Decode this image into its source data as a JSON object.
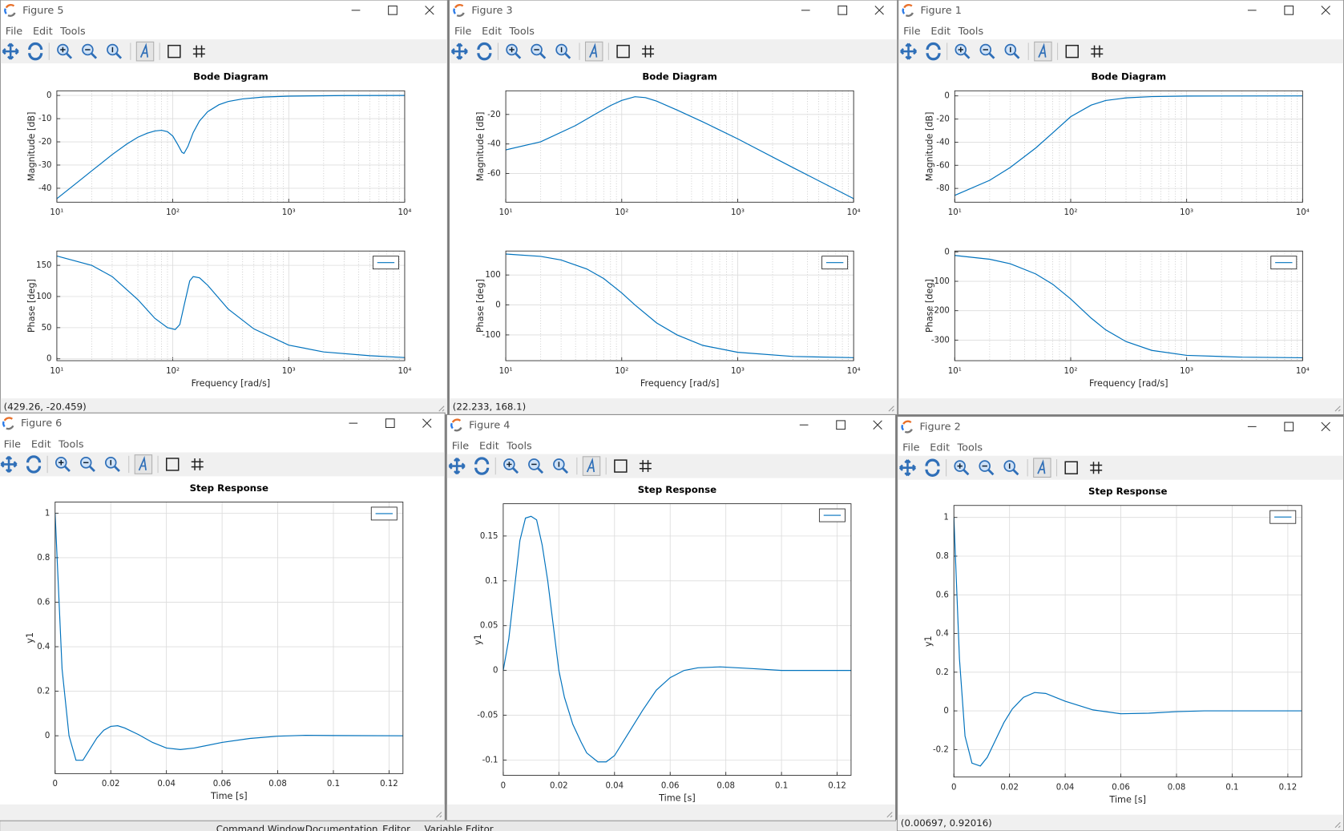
{
  "windows": [
    {
      "title": "Figure 5",
      "menu": [
        "File",
        "Edit",
        "Tools"
      ],
      "status": "(429.26, -20.459)",
      "charts": [
        {
          "type": "line",
          "title": "Bode Diagram",
          "ylabel": "Magnitude [dB]",
          "xscale": "log",
          "xlim": [
            10,
            10000
          ],
          "ylim": [
            -46,
            2
          ],
          "xticks": [
            {
              "value": 10,
              "label": "10¹"
            },
            {
              "value": 100,
              "label": "10²"
            },
            {
              "value": 1000,
              "label": "10³"
            },
            {
              "value": 10000,
              "label": "10⁴"
            }
          ],
          "yticks": [
            -40,
            -30,
            -20,
            -10,
            0
          ],
          "grid": true,
          "minor_grid": true,
          "series": [
            {
              "color": "#0072bd",
              "x": [
                10,
                15,
                20,
                30,
                40,
                50,
                60,
                70,
                80,
                90,
                100,
                110,
                120,
                125,
                135,
                150,
                170,
                200,
                250,
                300,
                400,
                600,
                1000,
                3000,
                10000
              ],
              "y": [
                -44.5,
                -37.5,
                -32.5,
                -25.5,
                -21,
                -18,
                -16.3,
                -15.3,
                -15,
                -15.6,
                -17.5,
                -21,
                -24.5,
                -25,
                -22,
                -16,
                -11,
                -7,
                -4,
                -2.6,
                -1.5,
                -0.7,
                -0.3,
                -0.05,
                0
              ]
            }
          ]
        },
        {
          "type": "line",
          "xlabel": "Frequency [rad/s]",
          "ylabel": "Phase [deg]",
          "xscale": "log",
          "xlim": [
            10,
            10000
          ],
          "ylim": [
            -3,
            173
          ],
          "xticks": [
            {
              "value": 10,
              "label": "10¹"
            },
            {
              "value": 100,
              "label": "10²"
            },
            {
              "value": 1000,
              "label": "10³"
            },
            {
              "value": 10000,
              "label": "10⁴"
            }
          ],
          "yticks": [
            0,
            50,
            100,
            150
          ],
          "grid": true,
          "minor_grid": true,
          "legend": "northeast",
          "series": [
            {
              "color": "#0072bd",
              "x": [
                10,
                20,
                30,
                50,
                70,
                90,
                105,
                115,
                125,
                140,
                150,
                170,
                200,
                300,
                500,
                1000,
                2000,
                5000,
                10000
              ],
              "y": [
                165,
                150,
                132,
                95,
                65,
                50,
                47,
                55,
                85,
                125,
                132,
                130,
                118,
                80,
                48,
                22,
                11,
                5,
                2
              ]
            }
          ]
        }
      ]
    },
    {
      "title": "Figure 3",
      "menu": [
        "File",
        "Edit",
        "Tools"
      ],
      "status": "(22.233, 168.1)",
      "charts": [
        {
          "type": "line",
          "title": "Bode Diagram",
          "ylabel": "Magnitude [dB]",
          "xscale": "log",
          "xlim": [
            10,
            10000
          ],
          "ylim": [
            -79.4,
            -4
          ],
          "xticks": [
            {
              "value": 10,
              "label": "10¹"
            },
            {
              "value": 100,
              "label": "10²"
            },
            {
              "value": 1000,
              "label": "10³"
            },
            {
              "value": 10000,
              "label": "10⁴"
            }
          ],
          "yticks": [
            -60,
            -40,
            -20
          ],
          "grid": true,
          "minor_grid": true,
          "series": [
            {
              "color": "#0072bd",
              "x": [
                10,
                20,
                40,
                60,
                80,
                100,
                130,
                160,
                200,
                300,
                500,
                1000,
                3000,
                10000
              ],
              "y": [
                -44,
                -38.5,
                -27.5,
                -19.5,
                -14,
                -10.5,
                -8,
                -8.6,
                -11,
                -17,
                -25,
                -36.5,
                -56,
                -77
              ]
            }
          ]
        },
        {
          "type": "line",
          "xlabel": "Frequency [rad/s]",
          "ylabel": "Phase [deg]",
          "xscale": "log",
          "xlim": [
            10,
            10000
          ],
          "ylim": [
            -186,
            180
          ],
          "xticks": [
            {
              "value": 10,
              "label": "10¹"
            },
            {
              "value": 100,
              "label": "10²"
            },
            {
              "value": 1000,
              "label": "10³"
            },
            {
              "value": 10000,
              "label": "10⁴"
            }
          ],
          "yticks": [
            -100,
            0,
            100
          ],
          "grid": true,
          "minor_grid": true,
          "legend": "northeast",
          "series": [
            {
              "color": "#0072bd",
              "x": [
                10,
                20,
                30,
                50,
                70,
                100,
                130,
                200,
                300,
                500,
                1000,
                3000,
                10000
              ],
              "y": [
                170,
                162,
                150,
                120,
                88,
                40,
                0,
                -60,
                -100,
                -135,
                -158,
                -172,
                -176
              ]
            }
          ]
        }
      ]
    },
    {
      "title": "Figure 1",
      "menu": [
        "File",
        "Edit",
        "Tools"
      ],
      "charts": [
        {
          "type": "line",
          "title": "Bode Diagram",
          "ylabel": "Magnitude [dB]",
          "xscale": "log",
          "xlim": [
            10,
            10000
          ],
          "ylim": [
            -91.9,
            4.4
          ],
          "xticks": [
            {
              "value": 10,
              "label": "10¹"
            },
            {
              "value": 100,
              "label": "10²"
            },
            {
              "value": 1000,
              "label": "10³"
            },
            {
              "value": 10000,
              "label": "10⁴"
            }
          ],
          "yticks": [
            -80,
            -60,
            -40,
            -20,
            0
          ],
          "grid": true,
          "minor_grid": true,
          "series": [
            {
              "color": "#0072bd",
              "x": [
                10,
                20,
                30,
                50,
                70,
                100,
                150,
                200,
                300,
                500,
                1000,
                10000
              ],
              "y": [
                -86,
                -73,
                -62,
                -45,
                -32,
                -18,
                -8,
                -4,
                -1.7,
                -0.6,
                -0.15,
                0
              ]
            }
          ]
        },
        {
          "type": "line",
          "xlabel": "Frequency [rad/s]",
          "ylabel": "Phase [deg]",
          "xscale": "log",
          "xlim": [
            10,
            10000
          ],
          "ylim": [
            -370,
            3
          ],
          "xticks": [
            {
              "value": 10,
              "label": "10¹"
            },
            {
              "value": 100,
              "label": "10²"
            },
            {
              "value": 1000,
              "label": "10³"
            },
            {
              "value": 10000,
              "label": "10⁴"
            }
          ],
          "yticks": [
            -300,
            -200,
            -100,
            0
          ],
          "grid": true,
          "minor_grid": true,
          "legend": "northeast",
          "series": [
            {
              "color": "#0072bd",
              "x": [
                10,
                20,
                30,
                50,
                70,
                100,
                150,
                200,
                300,
                500,
                1000,
                3000,
                10000
              ],
              "y": [
                -12,
                -25,
                -40,
                -75,
                -110,
                -160,
                -225,
                -265,
                -305,
                -335,
                -352,
                -358,
                -360
              ]
            }
          ]
        }
      ]
    },
    {
      "title": "Figure 6",
      "menu": [
        "File",
        "Edit",
        "Tools"
      ],
      "charts": [
        {
          "type": "line",
          "title": "Step Response",
          "xlabel": "Time [s]",
          "ylabel": "y1",
          "xlim": [
            0,
            0.125
          ],
          "ylim": [
            -0.17,
            1.05
          ],
          "xticks": [
            0,
            0.02,
            0.04,
            0.06,
            0.08,
            0.1,
            0.12
          ],
          "yticks": [
            0,
            0.2,
            0.4,
            0.6,
            0.8,
            1
          ],
          "grid": true,
          "legend": "northeast",
          "series": [
            {
              "color": "#0072bd",
              "x": [
                0,
                0.0025,
                0.005,
                0.0075,
                0.01,
                0.0125,
                0.015,
                0.0175,
                0.02,
                0.0225,
                0.025,
                0.03,
                0.035,
                0.04,
                0.045,
                0.05,
                0.06,
                0.07,
                0.08,
                0.09,
                0.1,
                0.125
              ],
              "y": [
                1,
                0.3,
                0,
                -0.11,
                -0.11,
                -0.06,
                -0.01,
                0.025,
                0.042,
                0.045,
                0.035,
                0.005,
                -0.03,
                -0.055,
                -0.062,
                -0.055,
                -0.03,
                -0.012,
                -0.002,
                0.002,
                0.001,
                0
              ]
            }
          ]
        }
      ]
    },
    {
      "title": "Figure 4",
      "menu": [
        "File",
        "Edit",
        "Tools"
      ],
      "charts": [
        {
          "type": "line",
          "title": "Step Response",
          "xlabel": "Time [s]",
          "ylabel": "y1",
          "xlim": [
            0,
            0.125
          ],
          "ylim": [
            -0.117,
            0.186
          ],
          "xticks": [
            0,
            0.02,
            0.04,
            0.06,
            0.08,
            0.1,
            0.12
          ],
          "yticks": [
            -0.1,
            -0.05,
            0,
            0.05,
            0.1,
            0.15
          ],
          "grid": true,
          "legend": "northeast",
          "series": [
            {
              "color": "#0072bd",
              "x": [
                0,
                0.002,
                0.004,
                0.006,
                0.008,
                0.01,
                0.012,
                0.014,
                0.016,
                0.018,
                0.02,
                0.022,
                0.025,
                0.028,
                0.03,
                0.034,
                0.037,
                0.04,
                0.045,
                0.05,
                0.055,
                0.06,
                0.065,
                0.07,
                0.078,
                0.09,
                0.1,
                0.125
              ],
              "y": [
                0,
                0.035,
                0.09,
                0.145,
                0.17,
                0.172,
                0.168,
                0.14,
                0.1,
                0.05,
                0,
                -0.03,
                -0.06,
                -0.08,
                -0.092,
                -0.102,
                -0.102,
                -0.095,
                -0.07,
                -0.045,
                -0.022,
                -0.008,
                0,
                0.003,
                0.004,
                0.002,
                0,
                0
              ]
            }
          ]
        }
      ]
    },
    {
      "title": "Figure 2",
      "menu": [
        "File",
        "Edit",
        "Tools"
      ],
      "status": "(0.00697, 0.92016)",
      "charts": [
        {
          "type": "line",
          "title": "Step Response",
          "xlabel": "Time [s]",
          "ylabel": "y1",
          "xlim": [
            0,
            0.125
          ],
          "ylim": [
            -0.342,
            1.062
          ],
          "xticks": [
            0,
            0.02,
            0.04,
            0.06,
            0.08,
            0.1,
            0.12
          ],
          "yticks": [
            -0.2,
            0,
            0.2,
            0.4,
            0.6,
            0.8,
            1
          ],
          "grid": true,
          "legend": "northeast",
          "series": [
            {
              "color": "#0072bd",
              "x": [
                0,
                0.002,
                0.004,
                0.0065,
                0.0095,
                0.012,
                0.015,
                0.018,
                0.021,
                0.025,
                0.029,
                0.033,
                0.04,
                0.05,
                0.06,
                0.07,
                0.08,
                0.09,
                0.125
              ],
              "y": [
                1,
                0.27,
                -0.13,
                -0.27,
                -0.285,
                -0.24,
                -0.15,
                -0.06,
                0.01,
                0.07,
                0.095,
                0.09,
                0.05,
                0.005,
                -0.015,
                -0.012,
                -0.004,
                0,
                0
              ]
            }
          ]
        }
      ]
    }
  ],
  "tabs": [
    "Command Window",
    "Documentation",
    "Editor",
    "Variable Editor"
  ]
}
